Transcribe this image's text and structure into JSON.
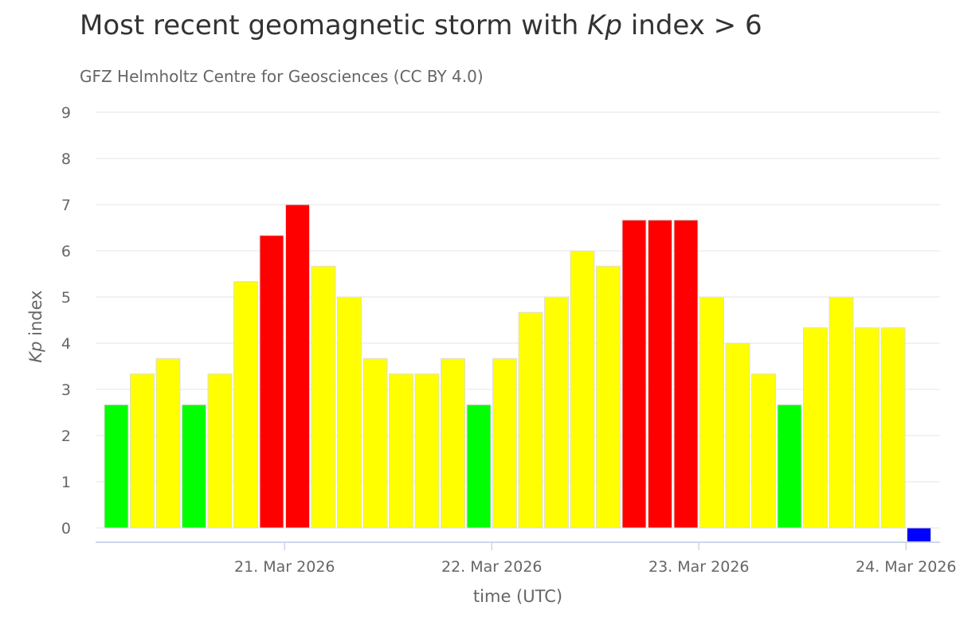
{
  "chart_data": {
    "type": "bar",
    "title_prefix": "Most recent geomagnetic storm with ",
    "title_var": "Kp",
    "title_suffix": " index > 6",
    "subtitle": "GFZ Helmholtz Centre for Geosciences (CC BY 4.0)",
    "ylabel_var": "Kp",
    "ylabel_suffix": " index",
    "xlabel": "time (UTC)",
    "ylim": [
      0,
      9
    ],
    "yticks": [
      0,
      1,
      2,
      3,
      4,
      5,
      6,
      7,
      8,
      9
    ],
    "x_tick_labels": [
      "21. Mar 2026",
      "22. Mar 2026",
      "23. Mar 2026",
      "24. Mar 2026"
    ],
    "x_tick_bar_index": [
      7,
      15,
      23,
      31
    ],
    "values": [
      2.667,
      3.333,
      3.667,
      2.667,
      3.333,
      5.333,
      6.333,
      7.0,
      5.667,
      5.0,
      3.667,
      3.333,
      3.333,
      3.667,
      2.667,
      3.667,
      4.667,
      5.0,
      6.0,
      5.667,
      6.667,
      6.667,
      6.667,
      5.0,
      4.0,
      3.333,
      2.667,
      4.333,
      5.0,
      4.333,
      4.333,
      -0.3
    ],
    "colors": {
      "quiet": "#00ff00",
      "active": "#ffff00",
      "storm": "#ff0000",
      "pending": "#0000ff",
      "grid": "#e6e6e6",
      "axis": "#ccd6eb"
    }
  }
}
